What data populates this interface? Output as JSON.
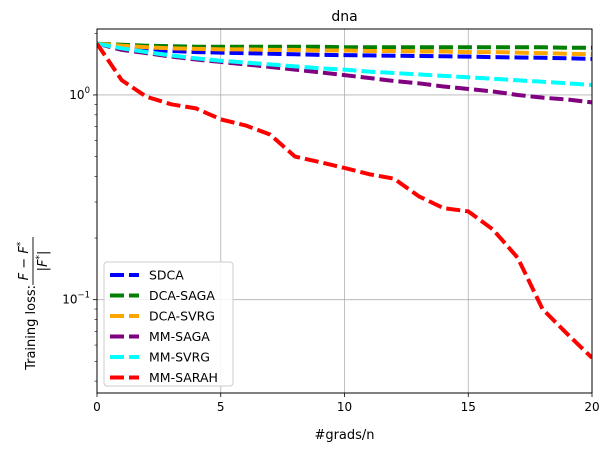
{
  "chart_data": {
    "type": "line",
    "title": "dna",
    "xlabel": "#grads/n",
    "ylabel_prefix": "Training loss: ",
    "ylabel_numerator": "F − F",
    "ylabel_denominator": "|F",
    "ylabel_superscript": "*",
    "yscale": "log",
    "xlim": [
      0,
      20
    ],
    "ylim": [
      0.035,
      2.1
    ],
    "grid": true,
    "legend_position": "lower-left",
    "x_ticks": [
      0,
      5,
      10,
      15,
      20
    ],
    "x_tick_labels": [
      "0",
      "5",
      "10",
      "15",
      "20"
    ],
    "y_major_ticks": [
      {
        "value": 0.1,
        "base": "10",
        "exp": "−1"
      },
      {
        "value": 1,
        "base": "10",
        "exp": "0"
      }
    ],
    "y_minor_ticks": [
      0.04,
      0.05,
      0.06,
      0.07,
      0.08,
      0.09,
      0.2,
      0.3,
      0.4,
      0.5,
      0.6,
      0.7,
      0.8,
      0.9,
      2
    ],
    "series": [
      {
        "name": "SDCA",
        "color": "#0000ff",
        "x": [
          0,
          1,
          2,
          3,
          4,
          5,
          6,
          7,
          8,
          9,
          10,
          11,
          12,
          13,
          14,
          15,
          16,
          17,
          18,
          19,
          20
        ],
        "y": [
          1.78,
          1.7,
          1.66,
          1.64,
          1.62,
          1.61,
          1.6,
          1.59,
          1.58,
          1.57,
          1.565,
          1.56,
          1.555,
          1.55,
          1.545,
          1.54,
          1.53,
          1.525,
          1.52,
          1.51,
          1.5
        ]
      },
      {
        "name": "DCA-SAGA",
        "color": "#008000",
        "x": [
          0,
          1,
          2,
          3,
          4,
          5,
          6,
          7,
          8,
          9,
          10,
          11,
          12,
          13,
          14,
          15,
          16,
          17,
          18,
          19,
          20
        ],
        "y": [
          1.78,
          1.76,
          1.74,
          1.73,
          1.72,
          1.72,
          1.72,
          1.72,
          1.72,
          1.72,
          1.71,
          1.71,
          1.71,
          1.71,
          1.71,
          1.71,
          1.71,
          1.71,
          1.71,
          1.7,
          1.7
        ]
      },
      {
        "name": "DCA-SVRG",
        "color": "#ffa500",
        "x": [
          0,
          1,
          2,
          3,
          4,
          5,
          6,
          7,
          8,
          9,
          10,
          11,
          12,
          13,
          14,
          15,
          16,
          17,
          18,
          19,
          20
        ],
        "y": [
          1.78,
          1.74,
          1.71,
          1.69,
          1.68,
          1.67,
          1.67,
          1.66,
          1.66,
          1.65,
          1.65,
          1.64,
          1.64,
          1.63,
          1.63,
          1.62,
          1.62,
          1.61,
          1.6,
          1.59,
          1.58
        ]
      },
      {
        "name": "MM-SAGA",
        "color": "#800080",
        "x": [
          0,
          1,
          2,
          3,
          4,
          5,
          6,
          7,
          8,
          9,
          10,
          11,
          12,
          13,
          14,
          15,
          16,
          17,
          18,
          19,
          20
        ],
        "y": [
          1.78,
          1.66,
          1.6,
          1.54,
          1.49,
          1.45,
          1.41,
          1.37,
          1.33,
          1.29,
          1.25,
          1.21,
          1.17,
          1.14,
          1.1,
          1.07,
          1.04,
          1.0,
          0.97,
          0.95,
          0.92
        ]
      },
      {
        "name": "MM-SVRG",
        "color": "#00ffff",
        "x": [
          0,
          1,
          2,
          3,
          4,
          5,
          6,
          7,
          8,
          9,
          10,
          11,
          12,
          13,
          14,
          15,
          16,
          17,
          18,
          19,
          20
        ],
        "y": [
          1.78,
          1.69,
          1.62,
          1.56,
          1.51,
          1.47,
          1.44,
          1.41,
          1.38,
          1.35,
          1.33,
          1.3,
          1.28,
          1.26,
          1.24,
          1.22,
          1.2,
          1.18,
          1.16,
          1.14,
          1.12
        ]
      },
      {
        "name": "MM-SARAH",
        "color": "#ff0000",
        "x": [
          0,
          1,
          2,
          3,
          4,
          5,
          6,
          7,
          8,
          9,
          10,
          11,
          12,
          13,
          14,
          15,
          16,
          17,
          18,
          19,
          20
        ],
        "y": [
          1.78,
          1.18,
          0.98,
          0.9,
          0.86,
          0.76,
          0.71,
          0.64,
          0.5,
          0.47,
          0.44,
          0.41,
          0.39,
          0.32,
          0.28,
          0.27,
          0.22,
          0.16,
          0.09,
          0.068,
          0.052
        ]
      }
    ]
  }
}
